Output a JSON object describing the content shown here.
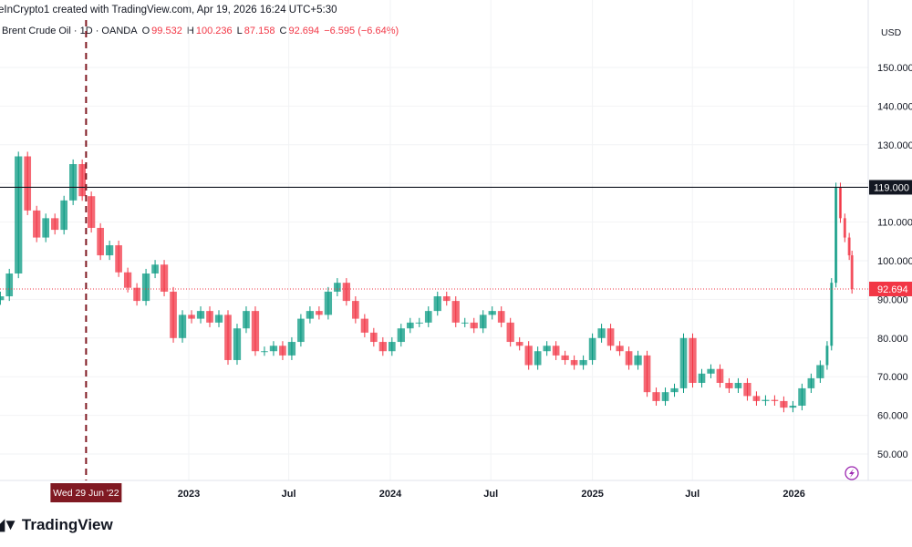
{
  "header": {
    "credit": "eInCrypto1 created with TradingView.com, Apr 19, 2026 16:24 UTC+5:30",
    "symbol": "Brent Crude Oil · 1D · OANDA",
    "o_label": "O",
    "o": "99.532",
    "h_label": "H",
    "h": "100.236",
    "l_label": "L",
    "l": "87.158",
    "c_label": "C",
    "c": "92.694",
    "change": "−6.595 (−6.64%)",
    "currency": "USD"
  },
  "colors": {
    "up": "#089981",
    "down": "#f23645",
    "crosshair": "#801922",
    "hline": "#131722",
    "accent": "#9c27b0"
  },
  "chart_data": {
    "type": "candlestick",
    "ylim": [
      40,
      160
    ],
    "y_ticks": [
      "50.000",
      "60.000",
      "70.000",
      "80.000",
      "90.000",
      "100.000",
      "110.000",
      "120.000",
      "130.000",
      "140.000",
      "150.000"
    ],
    "x_ticks": [
      {
        "label": "2023",
        "date": "2023-01-01"
      },
      {
        "label": "Jul",
        "date": "2023-07-01"
      },
      {
        "label": "2024",
        "date": "2024-01-01"
      },
      {
        "label": "Jul",
        "date": "2024-07-01"
      },
      {
        "label": "2025",
        "date": "2025-01-01"
      },
      {
        "label": "Jul",
        "date": "2025-07-01"
      },
      {
        "label": "2026",
        "date": "2026-01-01"
      }
    ],
    "xlim": [
      "2022-02-01",
      "2026-05-12"
    ],
    "grid": true,
    "horizontal_line": {
      "value": 119.0,
      "label": "119.000"
    },
    "last_price": {
      "value": 92.694,
      "label": "92.694"
    },
    "crosshair": {
      "date": "2022-06-29",
      "label": "Wed 29 Jun '22"
    },
    "closes": [
      [
        "2022-02-02",
        90.8
      ],
      [
        "2022-02-18",
        96.7
      ],
      [
        "2022-03-07",
        127
      ],
      [
        "2022-03-23",
        113
      ],
      [
        "2022-04-09",
        106
      ],
      [
        "2022-04-25",
        111
      ],
      [
        "2022-05-12",
        108
      ],
      [
        "2022-05-28",
        115.6
      ],
      [
        "2022-06-14",
        125
      ],
      [
        "2022-06-30",
        116.7
      ],
      [
        "2022-07-17",
        108.5
      ],
      [
        "2022-08-02",
        101.4
      ],
      [
        "2022-08-19",
        104
      ],
      [
        "2022-09-04",
        97
      ],
      [
        "2022-09-21",
        93
      ],
      [
        "2022-10-07",
        89.6
      ],
      [
        "2022-10-24",
        96.7
      ],
      [
        "2022-11-09",
        99
      ],
      [
        "2022-11-26",
        92
      ],
      [
        "2022-12-12",
        80
      ],
      [
        "2022-12-29",
        86
      ],
      [
        "2023-01-14",
        85
      ],
      [
        "2023-01-31",
        87
      ],
      [
        "2023-02-16",
        84
      ],
      [
        "2023-03-05",
        86
      ],
      [
        "2023-03-21",
        74.3
      ],
      [
        "2023-04-07",
        82.5
      ],
      [
        "2023-04-23",
        87
      ],
      [
        "2023-05-10",
        76.6
      ],
      [
        "2023-05-26",
        76.6
      ],
      [
        "2023-06-12",
        78
      ],
      [
        "2023-06-28",
        75.5
      ],
      [
        "2023-07-15",
        79
      ],
      [
        "2023-07-31",
        85
      ],
      [
        "2023-08-17",
        87
      ],
      [
        "2023-09-02",
        86
      ],
      [
        "2023-09-19",
        92
      ],
      [
        "2023-10-05",
        94.3
      ],
      [
        "2023-10-22",
        89.6
      ],
      [
        "2023-11-07",
        85
      ],
      [
        "2023-11-24",
        81.4
      ],
      [
        "2023-12-10",
        79
      ],
      [
        "2023-12-27",
        76.6
      ],
      [
        "2024-01-12",
        79
      ],
      [
        "2024-01-29",
        82.5
      ],
      [
        "2024-02-14",
        84
      ],
      [
        "2024-03-02",
        84
      ],
      [
        "2024-03-18",
        87
      ],
      [
        "2024-04-04",
        90.8
      ],
      [
        "2024-04-20",
        89.6
      ],
      [
        "2024-05-07",
        84
      ],
      [
        "2024-05-23",
        84
      ],
      [
        "2024-06-09",
        82.5
      ],
      [
        "2024-06-25",
        86
      ],
      [
        "2024-07-12",
        87
      ],
      [
        "2024-07-28",
        84
      ],
      [
        "2024-08-14",
        79
      ],
      [
        "2024-08-30",
        78
      ],
      [
        "2024-09-16",
        73
      ],
      [
        "2024-10-02",
        76.6
      ],
      [
        "2024-10-19",
        78
      ],
      [
        "2024-11-04",
        75.5
      ],
      [
        "2024-11-21",
        74.3
      ],
      [
        "2024-12-07",
        73
      ],
      [
        "2024-12-24",
        74.3
      ],
      [
        "2025-01-09",
        80
      ],
      [
        "2025-01-26",
        82.5
      ],
      [
        "2025-02-11",
        78
      ],
      [
        "2025-02-28",
        76.6
      ],
      [
        "2025-03-16",
        73
      ],
      [
        "2025-04-02",
        75.5
      ],
      [
        "2025-04-18",
        66
      ],
      [
        "2025-05-05",
        63.7
      ],
      [
        "2025-05-21",
        66
      ],
      [
        "2025-06-07",
        67
      ],
      [
        "2025-06-23",
        80
      ],
      [
        "2025-07-10",
        68.4
      ],
      [
        "2025-07-26",
        70.8
      ],
      [
        "2025-08-12",
        72
      ],
      [
        "2025-08-28",
        68.4
      ],
      [
        "2025-09-14",
        67
      ],
      [
        "2025-09-30",
        68.4
      ],
      [
        "2025-10-17",
        65
      ],
      [
        "2025-11-02",
        63.7
      ],
      [
        "2025-11-19",
        64
      ],
      [
        "2025-12-05",
        63.7
      ],
      [
        "2025-12-22",
        62
      ],
      [
        "2026-01-07",
        62.5
      ],
      [
        "2026-01-24",
        67
      ],
      [
        "2026-02-09",
        69.6
      ],
      [
        "2026-02-26",
        73
      ],
      [
        "2026-03-06",
        78
      ],
      [
        "2026-03-14",
        94.3
      ],
      [
        "2026-03-22",
        119
      ],
      [
        "2026-03-30",
        111
      ],
      [
        "2026-04-07",
        106
      ],
      [
        "2026-04-15",
        101.4
      ],
      [
        "2026-04-17",
        92.694
      ]
    ]
  },
  "footer": {
    "brand": "TradingView"
  }
}
